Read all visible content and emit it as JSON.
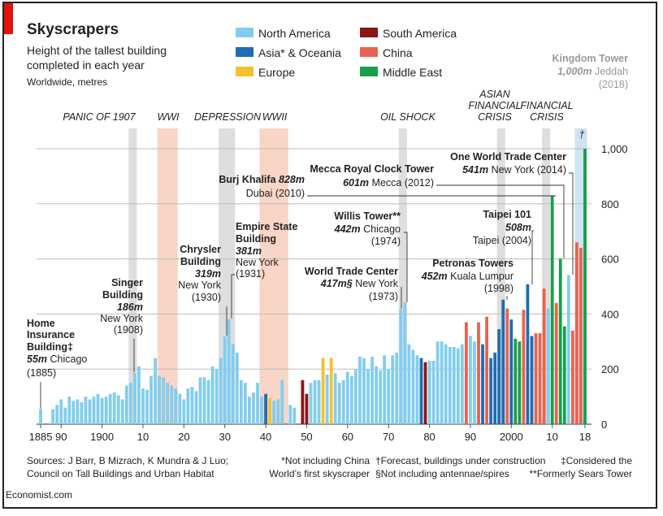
{
  "chart_data": {
    "type": "bar",
    "title": "Skyscrapers",
    "subtitle": [
      "Height of the tallest building",
      "completed in each year"
    ],
    "unit_note": "Worldwide, metres",
    "series": [
      {
        "name": "North America",
        "color": "#82cdee",
        "x": [
          1885,
          1888,
          1889,
          1890,
          1891,
          1892,
          1893,
          1894,
          1895,
          1896,
          1897,
          1898,
          1899,
          1900,
          1901,
          1902,
          1903,
          1904,
          1905,
          1906,
          1907,
          1908,
          1909,
          1910,
          1911,
          1912,
          1913,
          1914,
          1915,
          1916,
          1917,
          1918,
          1919,
          1920,
          1921,
          1922,
          1923,
          1924,
          1925,
          1926,
          1927,
          1928,
          1929,
          1930,
          1931,
          1932,
          1933,
          1934,
          1935,
          1936,
          1937,
          1938,
          1939,
          1942,
          1943,
          1944,
          1946,
          1947,
          1951,
          1952,
          1953,
          1955,
          1957,
          1958,
          1959,
          1960,
          1961,
          1962,
          1963,
          1964,
          1965,
          1966,
          1967,
          1968,
          1969,
          1970,
          1971,
          1972,
          1973,
          1974,
          1975,
          1976,
          1977,
          1980,
          1981,
          1982,
          1983,
          1984,
          1985,
          1986,
          1987,
          1988,
          1990,
          1991,
          2009,
          2014
        ],
        "values": [
          55,
          55,
          70,
          90,
          60,
          100,
          85,
          90,
          80,
          100,
          90,
          100,
          110,
          95,
          100,
          110,
          115,
          105,
          90,
          140,
          150,
          186,
          210,
          130,
          125,
          175,
          240,
          175,
          170,
          150,
          140,
          130,
          110,
          90,
          130,
          135,
          120,
          170,
          170,
          160,
          210,
          200,
          240,
          319,
          381,
          290,
          260,
          160,
          150,
          100,
          115,
          150,
          100,
          85,
          90,
          160,
          70,
          60,
          150,
          160,
          160,
          180,
          185,
          150,
          160,
          190,
          175,
          200,
          245,
          240,
          200,
          245,
          210,
          195,
          250,
          200,
          250,
          260,
          417,
          442,
          290,
          270,
          250,
          230,
          230,
          300,
          300,
          290,
          280,
          280,
          275,
          290,
          320,
          300,
          420,
          541
        ]
      },
      {
        "name": "Asia* & Oceania",
        "color": "#1f6db3",
        "x": [
          1940,
          1978,
          1993,
          1995,
          1996,
          1997,
          1998,
          2000,
          2004,
          2005
        ],
        "values": [
          110,
          240,
          290,
          240,
          260,
          345,
          452,
          380,
          508,
          320
        ]
      },
      {
        "name": "Europe",
        "color": "#f4c12c",
        "x": [
          1941,
          1954,
          1956
        ],
        "values": [
          95,
          240,
          240
        ]
      },
      {
        "name": "South America",
        "color": "#8b1616",
        "x": [
          1949,
          1950,
          1979
        ],
        "values": [
          160,
          110,
          225
        ]
      },
      {
        "name": "China",
        "color": "#e8634f",
        "x": [
          1989,
          1992,
          1994,
          1999,
          2003,
          2006,
          2007,
          2008,
          2011,
          2015,
          2016,
          2017
        ],
        "values": [
          370,
          370,
          390,
          420,
          415,
          330,
          330,
          492,
          440,
          340,
          660,
          640
        ]
      },
      {
        "name": "Middle East",
        "color": "#1a9e4c",
        "x": [
          2001,
          2002,
          2010,
          2012,
          2013,
          2018
        ],
        "values": [
          310,
          300,
          828,
          601,
          355,
          1000
        ]
      }
    ],
    "xlim": [
      1884,
      2019
    ],
    "xticks": [
      1885,
      {
        "value": 1890,
        "label": "90"
      },
      1900,
      {
        "value": 1910,
        "label": "10"
      },
      {
        "value": 1920,
        "label": "20"
      },
      {
        "value": 1930,
        "label": "30"
      },
      {
        "value": 1940,
        "label": "40"
      },
      {
        "value": 1950,
        "label": "50"
      },
      {
        "value": 1960,
        "label": "60"
      },
      {
        "value": 1970,
        "label": "70"
      },
      {
        "value": 1980,
        "label": "80"
      },
      {
        "value": 1990,
        "label": "90"
      },
      2000,
      {
        "value": 2010,
        "label": "10"
      },
      {
        "value": 2018,
        "label": "18"
      }
    ],
    "ylim": [
      0,
      1000
    ],
    "yticks": [
      0,
      200,
      400,
      600,
      800,
      {
        "value": 1000,
        "label": "1,000"
      }
    ],
    "grid": true,
    "periods": [
      {
        "label": [
          "PANIC OF 1907"
        ],
        "start": 1907,
        "end": 1908,
        "color": "#dedede",
        "label_color": "#666"
      },
      {
        "label": [
          "WWI"
        ],
        "start": 1914,
        "end": 1918,
        "color": "#f8d5c6",
        "label_color": "#d9553a"
      },
      {
        "label": [
          "DEPRESSION"
        ],
        "start": 1929,
        "end": 1932,
        "color": "#dedede",
        "label_color": "#666"
      },
      {
        "label": [
          "WWII"
        ],
        "start": 1939,
        "end": 1945,
        "color": "#f8d5c6",
        "label_color": "#d9553a"
      },
      {
        "label": [
          "OIL SHOCK"
        ],
        "start": 1973,
        "end": 1974,
        "color": "#dedede",
        "label_color": "#666"
      },
      {
        "label": [
          "ASIAN",
          "FINANCIAL",
          "CRISIS"
        ],
        "start": 1997,
        "end": 1998,
        "color": "#dedede",
        "label_color": "#666"
      },
      {
        "label": [
          "FINANCIAL",
          "CRISIS"
        ],
        "start": 2008,
        "end": 2009,
        "color": "#dedede",
        "label_color": "#666"
      },
      {
        "label": [
          "†"
        ],
        "start": 2016,
        "end": 2018,
        "color": "#cfe3f3",
        "label_color": "#ffffff"
      }
    ],
    "annotations": [
      {
        "name": [
          "Home",
          "Insurance",
          "Building‡"
        ],
        "height": "55m",
        "place": [
          "Chicago"
        ],
        "year": "(1885)"
      },
      {
        "name": [
          "Singer",
          "Building"
        ],
        "height": "186m",
        "place": [
          "New York"
        ],
        "year": "(1908)"
      },
      {
        "name": [
          "Chrysler",
          "Building"
        ],
        "height": "319m",
        "place": [
          "New York"
        ],
        "year": "(1930)"
      },
      {
        "name": [
          "Empire State",
          "Building"
        ],
        "height": "381m",
        "place": [
          "New York"
        ],
        "year": "(1931)"
      },
      {
        "name": [
          "Burj Khalifa"
        ],
        "height": "828m",
        "place": [
          "Dubai"
        ],
        "year": "(2010)"
      },
      {
        "name": [
          "Mecca Royal Clock Tower"
        ],
        "height": "601m",
        "place": [
          "Mecca"
        ],
        "year": "(2012)"
      },
      {
        "name": [
          "One World Trade Center"
        ],
        "height": "541m",
        "place": [
          "New York"
        ],
        "year": "(2014)"
      },
      {
        "name": [
          "Willis Tower**"
        ],
        "height": "442m",
        "place": [
          "Chicago"
        ],
        "year": "(1974)"
      },
      {
        "name": [
          "World Trade Center"
        ],
        "height": "417m§",
        "place": [
          "New York"
        ],
        "year": "(1973)"
      },
      {
        "name": [
          "Petronas Towers"
        ],
        "height": "452m",
        "place": [
          "Kuala Lumpur"
        ],
        "year": "(1998)"
      },
      {
        "name": [
          "Taipei 101"
        ],
        "height": "508m",
        "place": [
          "Taipei"
        ],
        "year": "(2004)"
      },
      {
        "name": [
          "Kingdom Tower"
        ],
        "height": "1,000m",
        "place": [
          "Jeddah"
        ],
        "year": "(2018)"
      }
    ],
    "sources": [
      "Sources: J Barr, B Mizrach, K Mundra & J Luo;",
      "Council on Tall Buildings and Urban Habitat"
    ],
    "footnotes": [
      "*Not including China",
      "World’s first skyscraper",
      "†Forecast, buildings under construction",
      "§Not including antennae/spires",
      "‡Considered the",
      "**Formerly Sears Tower"
    ],
    "brand": "Economist.com"
  }
}
